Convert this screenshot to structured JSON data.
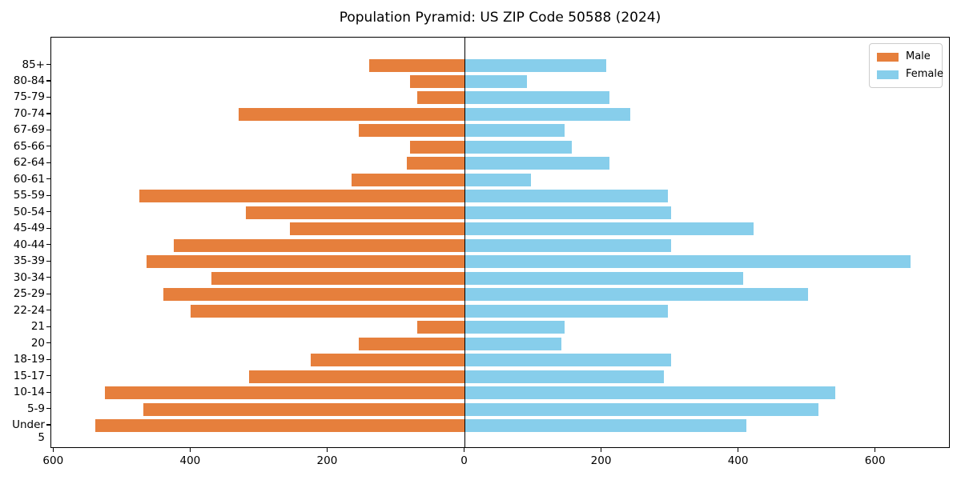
{
  "title": "Population Pyramid: US ZIP Code 50588 (2024)",
  "legend": {
    "items": [
      {
        "label": "Male",
        "color": "#E67F3C"
      },
      {
        "label": "Female",
        "color": "#87CEEB"
      }
    ]
  },
  "chart_data": {
    "type": "bar",
    "orientation": "horizontal-pyramid",
    "title": "Population Pyramid: US ZIP Code 50588 (2024)",
    "categories_top_to_bottom": [
      "85+",
      "80-84",
      "75-79",
      "70-74",
      "67-69",
      "65-66",
      "62-64",
      "60-61",
      "55-59",
      "50-54",
      "45-49",
      "40-44",
      "35-39",
      "30-34",
      "25-29",
      "22-24",
      "21",
      "20",
      "18-19",
      "15-17",
      "10-14",
      "5-9",
      "Under 5"
    ],
    "series": [
      {
        "name": "Male",
        "side": "left",
        "color": "#E67F3C",
        "values": [
          140,
          80,
          70,
          330,
          155,
          80,
          85,
          165,
          475,
          320,
          255,
          425,
          465,
          370,
          440,
          400,
          70,
          155,
          225,
          315,
          525,
          470,
          540
        ]
      },
      {
        "name": "Female",
        "side": "right",
        "color": "#87CEEB",
        "values": [
          205,
          90,
          210,
          240,
          145,
          155,
          210,
          95,
          295,
          300,
          420,
          300,
          650,
          405,
          500,
          295,
          145,
          140,
          300,
          290,
          540,
          515,
          410
        ]
      }
    ],
    "x_tick_labels": [
      "600",
      "400",
      "200",
      "0",
      "200",
      "400",
      "600"
    ],
    "x_tick_values": [
      -600,
      -400,
      -200,
      0,
      200,
      400,
      600
    ],
    "xlim": [
      -604,
      709
    ],
    "zero_line": true,
    "grid": false,
    "legend_position": "upper right"
  }
}
